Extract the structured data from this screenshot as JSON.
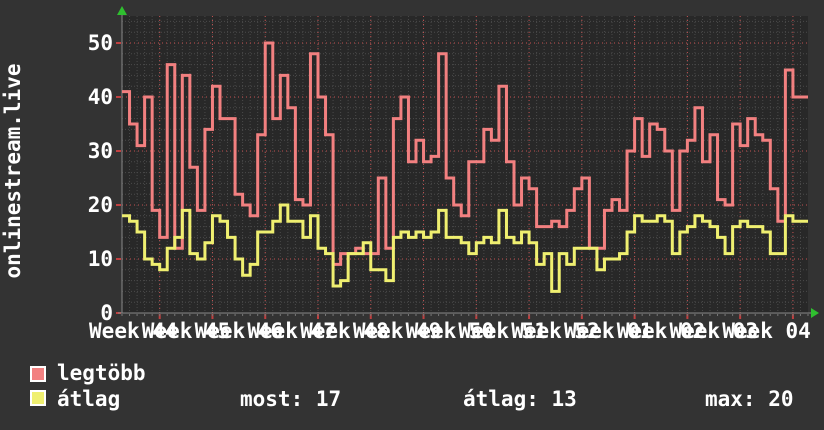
{
  "chart_data": {
    "type": "line",
    "step_line": true,
    "vertical_label": "onlinestream.live",
    "x_tick_labels": [
      "Week 44",
      "Week 45",
      "Week 46",
      "Week 47",
      "Week 48",
      "Week 49",
      "Week 50",
      "Week 51",
      "Week 52",
      "Week 01",
      "Week 02",
      "Week 03",
      "Week 04"
    ],
    "y_ticks": [
      0,
      10,
      20,
      30,
      40,
      50
    ],
    "ylim": [
      0,
      55
    ],
    "x_days_total": 91,
    "first_week_boundary_day_index": 5,
    "days_per_week": 7,
    "grid": {
      "minor_y_step": 2,
      "minor_x_step_days": 1,
      "major_color": "#c25050",
      "minor_color": "#4a4a4a"
    },
    "canvas_color": "#282828",
    "background_color": "#333333",
    "axis_arrow_color": "#2fbf2f",
    "legend_position": "bottom-left",
    "series": [
      {
        "name": "legtöbb",
        "color": "#f28080",
        "values": [
          41,
          35,
          31,
          40,
          19,
          14,
          46,
          12,
          44,
          27,
          19,
          34,
          42,
          36,
          36,
          22,
          20,
          18,
          33,
          50,
          36,
          44,
          38,
          21,
          20,
          48,
          40,
          33,
          9,
          11,
          11,
          12,
          11,
          11,
          25,
          12,
          36,
          40,
          28,
          32,
          28,
          29,
          48,
          25,
          20,
          18,
          28,
          28,
          34,
          32,
          42,
          28,
          20,
          25,
          23,
          16,
          16,
          17,
          16,
          19,
          23,
          25,
          12,
          12,
          19,
          21,
          19,
          30,
          36,
          29,
          35,
          34,
          30,
          19,
          30,
          32,
          38,
          28,
          33,
          21,
          20,
          35,
          31,
          36,
          33,
          32,
          23,
          17,
          45,
          40,
          40
        ]
      },
      {
        "name": "átlag",
        "color": "#efef70",
        "values": [
          18,
          17,
          15,
          10,
          9,
          8,
          12,
          14,
          19,
          11,
          10,
          13,
          18,
          17,
          14,
          10,
          7,
          9,
          15,
          15,
          17,
          20,
          17,
          17,
          14,
          18,
          12,
          11,
          5,
          6,
          11,
          11,
          13,
          8,
          8,
          6,
          14,
          15,
          14,
          15,
          14,
          15,
          19,
          14,
          14,
          13,
          11,
          13,
          14,
          13,
          19,
          14,
          13,
          15,
          13,
          9,
          11,
          4,
          11,
          9,
          12,
          12,
          12,
          8,
          10,
          10,
          11,
          15,
          18,
          17,
          17,
          18,
          17,
          11,
          15,
          16,
          18,
          17,
          16,
          14,
          11,
          16,
          17,
          16,
          16,
          15,
          11,
          11,
          18,
          17,
          17
        ]
      }
    ]
  },
  "legend": {
    "items": [
      {
        "label": "legtöbb",
        "color": "#f28080"
      },
      {
        "label": "átlag",
        "color": "#efef70"
      }
    ],
    "stats": [
      {
        "text": "most: 17"
      },
      {
        "text": "átlag: 13"
      },
      {
        "text": "max: 20"
      }
    ]
  }
}
